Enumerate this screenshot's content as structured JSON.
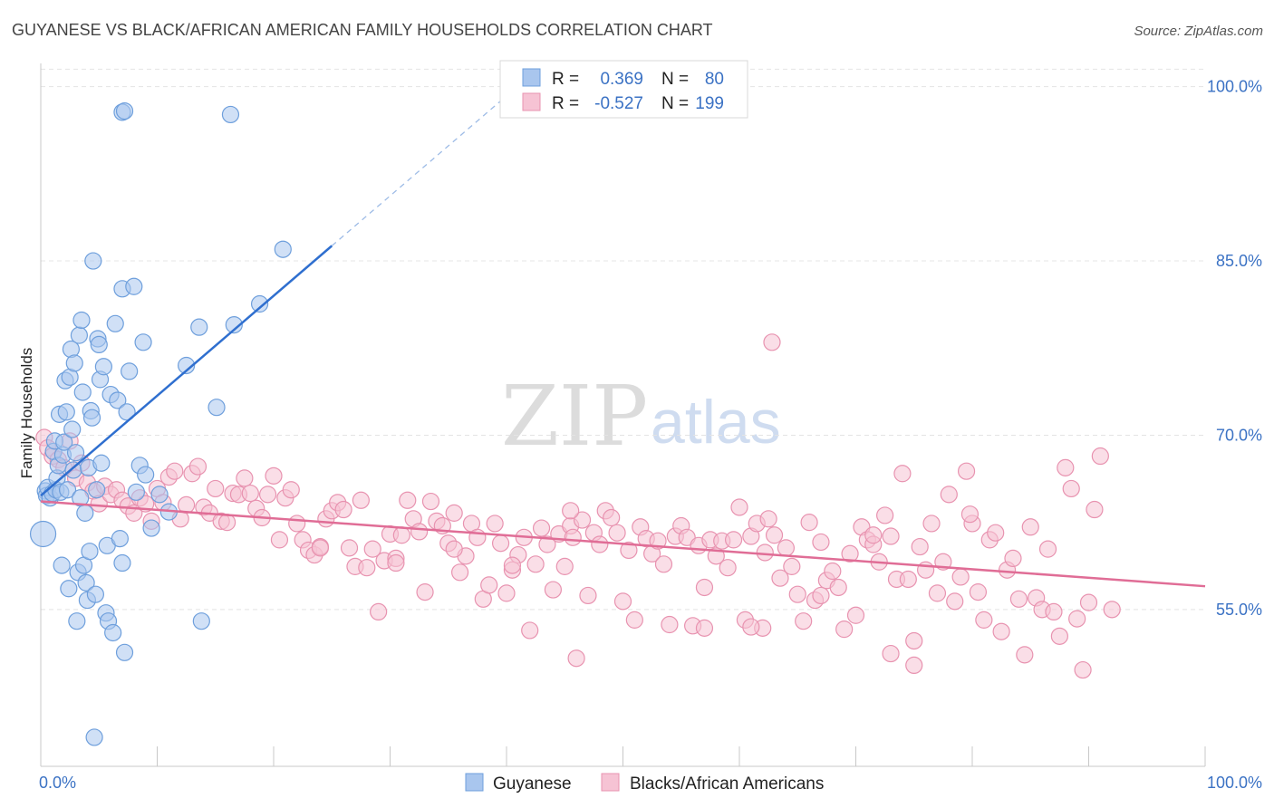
{
  "chart_data": {
    "type": "scatter",
    "title": "GUYANESE VS BLACK/AFRICAN AMERICAN FAMILY HOUSEHOLDS CORRELATION CHART",
    "source": "Source: ZipAtlas.com",
    "ylabel": "Family Households",
    "x_tick_labels": [
      "0.0%",
      "100.0%"
    ],
    "y_tick_labels": [
      "55.0%",
      "70.0%",
      "85.0%",
      "100.0%"
    ],
    "y_tick_values": [
      55,
      70,
      85,
      100
    ],
    "xlim": [
      0,
      100
    ],
    "ylim": [
      41.5,
      102
    ],
    "grid": true,
    "watermark": {
      "zip": "ZIP",
      "atlas": "atlas"
    },
    "legend_box": {
      "rows": [
        {
          "r_label": "R =",
          "r_value": "0.369",
          "n_label": "N =",
          "n_value": "80"
        },
        {
          "r_label": "R =",
          "r_value": "-0.527",
          "n_label": "N =",
          "n_value": "199"
        }
      ]
    },
    "series": [
      {
        "name": "Guyanese",
        "color": "#6e9fdc",
        "fill": "#a9c6ee",
        "line_color": "#2f6fcf",
        "trend": {
          "x0": 0,
          "y0": 64.8,
          "x1": 25,
          "y1": 86.3,
          "dash_to_x": 40,
          "dash_to_y": 99.2
        },
        "points": [
          [
            0.2,
            61.5
          ],
          [
            0.4,
            65.2
          ],
          [
            0.5,
            64.8
          ],
          [
            0.6,
            65.5
          ],
          [
            0.8,
            64.6
          ],
          [
            1.0,
            65.0
          ],
          [
            1.1,
            68.6
          ],
          [
            1.2,
            69.5
          ],
          [
            1.3,
            65.3
          ],
          [
            1.4,
            66.3
          ],
          [
            1.5,
            67.4
          ],
          [
            1.6,
            71.8
          ],
          [
            1.7,
            65.1
          ],
          [
            1.8,
            58.8
          ],
          [
            1.9,
            68.3
          ],
          [
            2.0,
            69.4
          ],
          [
            2.1,
            74.7
          ],
          [
            2.2,
            72.0
          ],
          [
            2.3,
            65.3
          ],
          [
            2.4,
            56.8
          ],
          [
            2.5,
            75.0
          ],
          [
            2.6,
            77.4
          ],
          [
            2.7,
            70.5
          ],
          [
            2.8,
            67.0
          ],
          [
            2.9,
            76.2
          ],
          [
            3.0,
            68.5
          ],
          [
            3.1,
            54.0
          ],
          [
            3.2,
            58.2
          ],
          [
            3.3,
            78.6
          ],
          [
            3.4,
            64.6
          ],
          [
            3.5,
            79.9
          ],
          [
            3.6,
            73.7
          ],
          [
            3.7,
            58.8
          ],
          [
            3.8,
            63.3
          ],
          [
            3.9,
            57.3
          ],
          [
            4.0,
            55.8
          ],
          [
            4.1,
            67.2
          ],
          [
            4.2,
            60.0
          ],
          [
            4.3,
            72.1
          ],
          [
            4.4,
            71.5
          ],
          [
            4.5,
            85.0
          ],
          [
            4.6,
            44.0
          ],
          [
            4.7,
            56.3
          ],
          [
            4.8,
            65.3
          ],
          [
            4.9,
            78.3
          ],
          [
            5.0,
            77.8
          ],
          [
            5.1,
            74.8
          ],
          [
            5.2,
            67.6
          ],
          [
            5.4,
            75.9
          ],
          [
            5.6,
            54.7
          ],
          [
            5.7,
            60.5
          ],
          [
            5.8,
            54.0
          ],
          [
            6.0,
            73.5
          ],
          [
            6.2,
            53.0
          ],
          [
            6.4,
            79.6
          ],
          [
            6.6,
            73.0
          ],
          [
            6.8,
            61.1
          ],
          [
            7.0,
            59.0
          ],
          [
            7.2,
            51.3
          ],
          [
            7.4,
            72.0
          ],
          [
            7.0,
            97.8
          ],
          [
            7.2,
            97.9
          ],
          [
            7.0,
            82.6
          ],
          [
            7.6,
            75.5
          ],
          [
            8.0,
            82.8
          ],
          [
            8.5,
            67.4
          ],
          [
            9.0,
            66.6
          ],
          [
            8.2,
            65.1
          ],
          [
            8.8,
            78.0
          ],
          [
            9.5,
            62.0
          ],
          [
            12.5,
            76.0
          ],
          [
            13.6,
            79.3
          ],
          [
            13.8,
            54.0
          ],
          [
            15.1,
            72.4
          ],
          [
            16.3,
            97.6
          ],
          [
            16.6,
            79.5
          ],
          [
            18.8,
            81.3
          ],
          [
            20.8,
            86.0
          ],
          [
            10.2,
            64.9
          ],
          [
            11.0,
            63.4
          ]
        ]
      },
      {
        "name": "Blacks/African Americans",
        "color": "#e893b0",
        "fill": "#f6c3d4",
        "line_color": "#e06d96",
        "trend": {
          "x0": 0,
          "y0": 64.3,
          "x1": 100,
          "y1": 57.0
        },
        "points": [
          [
            0.3,
            69.8
          ],
          [
            0.6,
            68.9
          ],
          [
            1.0,
            68.2
          ],
          [
            1.5,
            67.9
          ],
          [
            2.0,
            67.2
          ],
          [
            2.5,
            69.5
          ],
          [
            3.0,
            66.3
          ],
          [
            3.5,
            67.6
          ],
          [
            4.0,
            65.9
          ],
          [
            4.5,
            65.2
          ],
          [
            5.0,
            64.1
          ],
          [
            5.5,
            65.6
          ],
          [
            6.0,
            64.9
          ],
          [
            6.5,
            65.3
          ],
          [
            7.0,
            64.4
          ],
          [
            7.5,
            63.9
          ],
          [
            8.0,
            63.3
          ],
          [
            8.5,
            64.6
          ],
          [
            9.0,
            64.1
          ],
          [
            9.5,
            62.6
          ],
          [
            10.0,
            65.4
          ],
          [
            10.5,
            64.2
          ],
          [
            11.0,
            66.4
          ],
          [
            11.5,
            66.9
          ],
          [
            12.0,
            62.8
          ],
          [
            12.5,
            64.0
          ],
          [
            13.0,
            66.7
          ],
          [
            13.5,
            67.3
          ],
          [
            14.0,
            63.8
          ],
          [
            14.5,
            63.3
          ],
          [
            15.0,
            65.4
          ],
          [
            15.5,
            62.6
          ],
          [
            16.0,
            62.5
          ],
          [
            16.5,
            65.0
          ],
          [
            17.0,
            64.9
          ],
          [
            17.5,
            66.3
          ],
          [
            18.0,
            65.0
          ],
          [
            18.5,
            63.7
          ],
          [
            19.0,
            62.9
          ],
          [
            19.5,
            64.9
          ],
          [
            20.0,
            66.5
          ],
          [
            20.5,
            61.0
          ],
          [
            21.0,
            64.6
          ],
          [
            21.5,
            65.3
          ],
          [
            22.0,
            62.4
          ],
          [
            22.5,
            61.0
          ],
          [
            23.0,
            60.1
          ],
          [
            23.5,
            59.7
          ],
          [
            24.0,
            60.4
          ],
          [
            24.5,
            62.8
          ],
          [
            25.0,
            63.5
          ],
          [
            25.5,
            64.2
          ],
          [
            26.0,
            63.6
          ],
          [
            26.5,
            60.3
          ],
          [
            27.0,
            58.7
          ],
          [
            27.5,
            64.4
          ],
          [
            28.0,
            58.6
          ],
          [
            28.5,
            60.2
          ],
          [
            29.0,
            54.8
          ],
          [
            29.5,
            59.2
          ],
          [
            30.0,
            61.5
          ],
          [
            30.5,
            59.4
          ],
          [
            31.0,
            61.4
          ],
          [
            31.5,
            64.4
          ],
          [
            32.0,
            62.8
          ],
          [
            32.5,
            61.7
          ],
          [
            33.0,
            56.5
          ],
          [
            33.5,
            64.3
          ],
          [
            34.0,
            62.6
          ],
          [
            34.5,
            62.2
          ],
          [
            35.0,
            60.7
          ],
          [
            35.5,
            63.3
          ],
          [
            36.0,
            58.2
          ],
          [
            36.5,
            59.6
          ],
          [
            37.0,
            62.4
          ],
          [
            37.5,
            61.2
          ],
          [
            38.0,
            55.9
          ],
          [
            38.5,
            57.1
          ],
          [
            39.0,
            62.4
          ],
          [
            39.5,
            60.7
          ],
          [
            40.0,
            56.4
          ],
          [
            40.5,
            58.4
          ],
          [
            41.0,
            59.7
          ],
          [
            41.5,
            61.2
          ],
          [
            42.0,
            53.2
          ],
          [
            42.5,
            58.9
          ],
          [
            43.0,
            62.0
          ],
          [
            43.5,
            60.6
          ],
          [
            44.0,
            56.7
          ],
          [
            44.5,
            61.5
          ],
          [
            45.0,
            58.7
          ],
          [
            45.5,
            62.2
          ],
          [
            46.0,
            50.8
          ],
          [
            46.5,
            62.7
          ],
          [
            47.0,
            56.2
          ],
          [
            47.5,
            61.6
          ],
          [
            48.0,
            60.6
          ],
          [
            48.5,
            63.5
          ],
          [
            49.0,
            62.9
          ],
          [
            49.5,
            61.6
          ],
          [
            50.0,
            55.7
          ],
          [
            50.5,
            60.1
          ],
          [
            51.0,
            54.1
          ],
          [
            51.5,
            62.1
          ],
          [
            52.0,
            61.1
          ],
          [
            52.5,
            59.8
          ],
          [
            53.0,
            60.9
          ],
          [
            53.5,
            58.9
          ],
          [
            54.0,
            53.7
          ],
          [
            54.5,
            61.3
          ],
          [
            55.0,
            62.2
          ],
          [
            55.5,
            61.2
          ],
          [
            56.0,
            53.6
          ],
          [
            56.5,
            60.5
          ],
          [
            57.0,
            56.9
          ],
          [
            57.5,
            61.0
          ],
          [
            58.0,
            59.6
          ],
          [
            58.5,
            60.9
          ],
          [
            59.0,
            58.6
          ],
          [
            59.5,
            61.0
          ],
          [
            60.0,
            63.8
          ],
          [
            60.5,
            54.1
          ],
          [
            61.0,
            61.3
          ],
          [
            61.5,
            62.4
          ],
          [
            62.0,
            53.4
          ],
          [
            62.5,
            62.8
          ],
          [
            63.0,
            61.4
          ],
          [
            63.5,
            57.7
          ],
          [
            64.0,
            60.3
          ],
          [
            64.5,
            58.7
          ],
          [
            65.0,
            56.3
          ],
          [
            65.5,
            54.0
          ],
          [
            66.0,
            62.5
          ],
          [
            66.5,
            55.8
          ],
          [
            67.0,
            60.8
          ],
          [
            67.5,
            57.5
          ],
          [
            68.0,
            58.3
          ],
          [
            68.5,
            56.9
          ],
          [
            69.0,
            53.3
          ],
          [
            69.5,
            59.8
          ],
          [
            70.0,
            54.5
          ],
          [
            70.5,
            62.1
          ],
          [
            71.0,
            61.0
          ],
          [
            71.5,
            60.6
          ],
          [
            72.0,
            59.1
          ],
          [
            72.5,
            63.1
          ],
          [
            73.0,
            61.3
          ],
          [
            73.5,
            57.6
          ],
          [
            74.0,
            66.7
          ],
          [
            74.5,
            57.6
          ],
          [
            75.0,
            52.3
          ],
          [
            75.5,
            60.4
          ],
          [
            76.0,
            58.4
          ],
          [
            76.5,
            62.4
          ],
          [
            77.0,
            56.4
          ],
          [
            77.5,
            59.1
          ],
          [
            78.0,
            64.9
          ],
          [
            78.5,
            55.7
          ],
          [
            79.0,
            57.8
          ],
          [
            79.5,
            66.9
          ],
          [
            80.0,
            62.4
          ],
          [
            80.5,
            56.5
          ],
          [
            81.0,
            54.1
          ],
          [
            81.5,
            61.0
          ],
          [
            82.0,
            61.6
          ],
          [
            82.5,
            53.1
          ],
          [
            83.0,
            58.4
          ],
          [
            83.5,
            59.4
          ],
          [
            84.0,
            55.9
          ],
          [
            84.5,
            51.1
          ],
          [
            85.0,
            62.1
          ],
          [
            85.5,
            56.0
          ],
          [
            86.0,
            55.0
          ],
          [
            86.5,
            60.2
          ],
          [
            87.0,
            54.8
          ],
          [
            87.5,
            52.7
          ],
          [
            88.0,
            67.2
          ],
          [
            88.5,
            65.4
          ],
          [
            89.0,
            54.2
          ],
          [
            89.5,
            49.8
          ],
          [
            90.0,
            55.6
          ],
          [
            90.5,
            63.6
          ],
          [
            91.0,
            68.2
          ],
          [
            67.0,
            56.2
          ],
          [
            45.5,
            63.5
          ],
          [
            35.5,
            60.2
          ],
          [
            24.0,
            60.3
          ],
          [
            40.5,
            58.8
          ],
          [
            30.5,
            59.0
          ],
          [
            57.0,
            53.4
          ],
          [
            61.0,
            53.5
          ],
          [
            62.2,
            59.9
          ],
          [
            92.0,
            55.0
          ],
          [
            79.8,
            63.2
          ],
          [
            71.5,
            61.4
          ],
          [
            73.0,
            51.2
          ],
          [
            75.0,
            50.2
          ],
          [
            45.7,
            61.2
          ],
          [
            62.8,
            78.0
          ]
        ]
      }
    ]
  }
}
